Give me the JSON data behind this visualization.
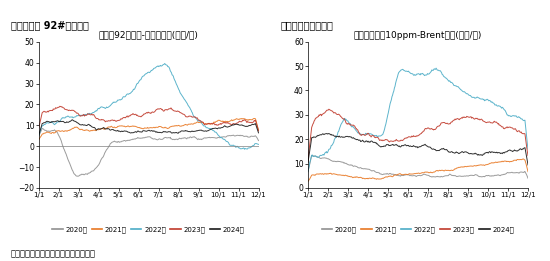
{
  "chart1_title": "新加坡92号汽油-布伦特裂解(美元/桶)",
  "chart2_title": "新加坡轻柴油10ppm-Brent裂解(美元/桶)",
  "header_left": "图：新加坡 92#汽油裂解",
  "header_right": "图：新加坡柴油裂解",
  "footer": "资料来源：阿花顺、彭博、新湖研究所",
  "legend_labels": [
    "2020年",
    "2021年",
    "2022年",
    "2023年",
    "2024年"
  ],
  "colors": [
    "#909090",
    "#E87722",
    "#4BACC6",
    "#C0392B",
    "#1A1A1A"
  ],
  "months": [
    "1/1",
    "2/1",
    "3/1",
    "4/1",
    "5/1",
    "6/1",
    "7/1",
    "8/1",
    "9/1",
    "10/1",
    "11/1",
    "12/1"
  ],
  "ylim1": [
    -20,
    50
  ],
  "ylim2": [
    0,
    60
  ],
  "header_bg": "#7EC8C8",
  "n_points": 360
}
